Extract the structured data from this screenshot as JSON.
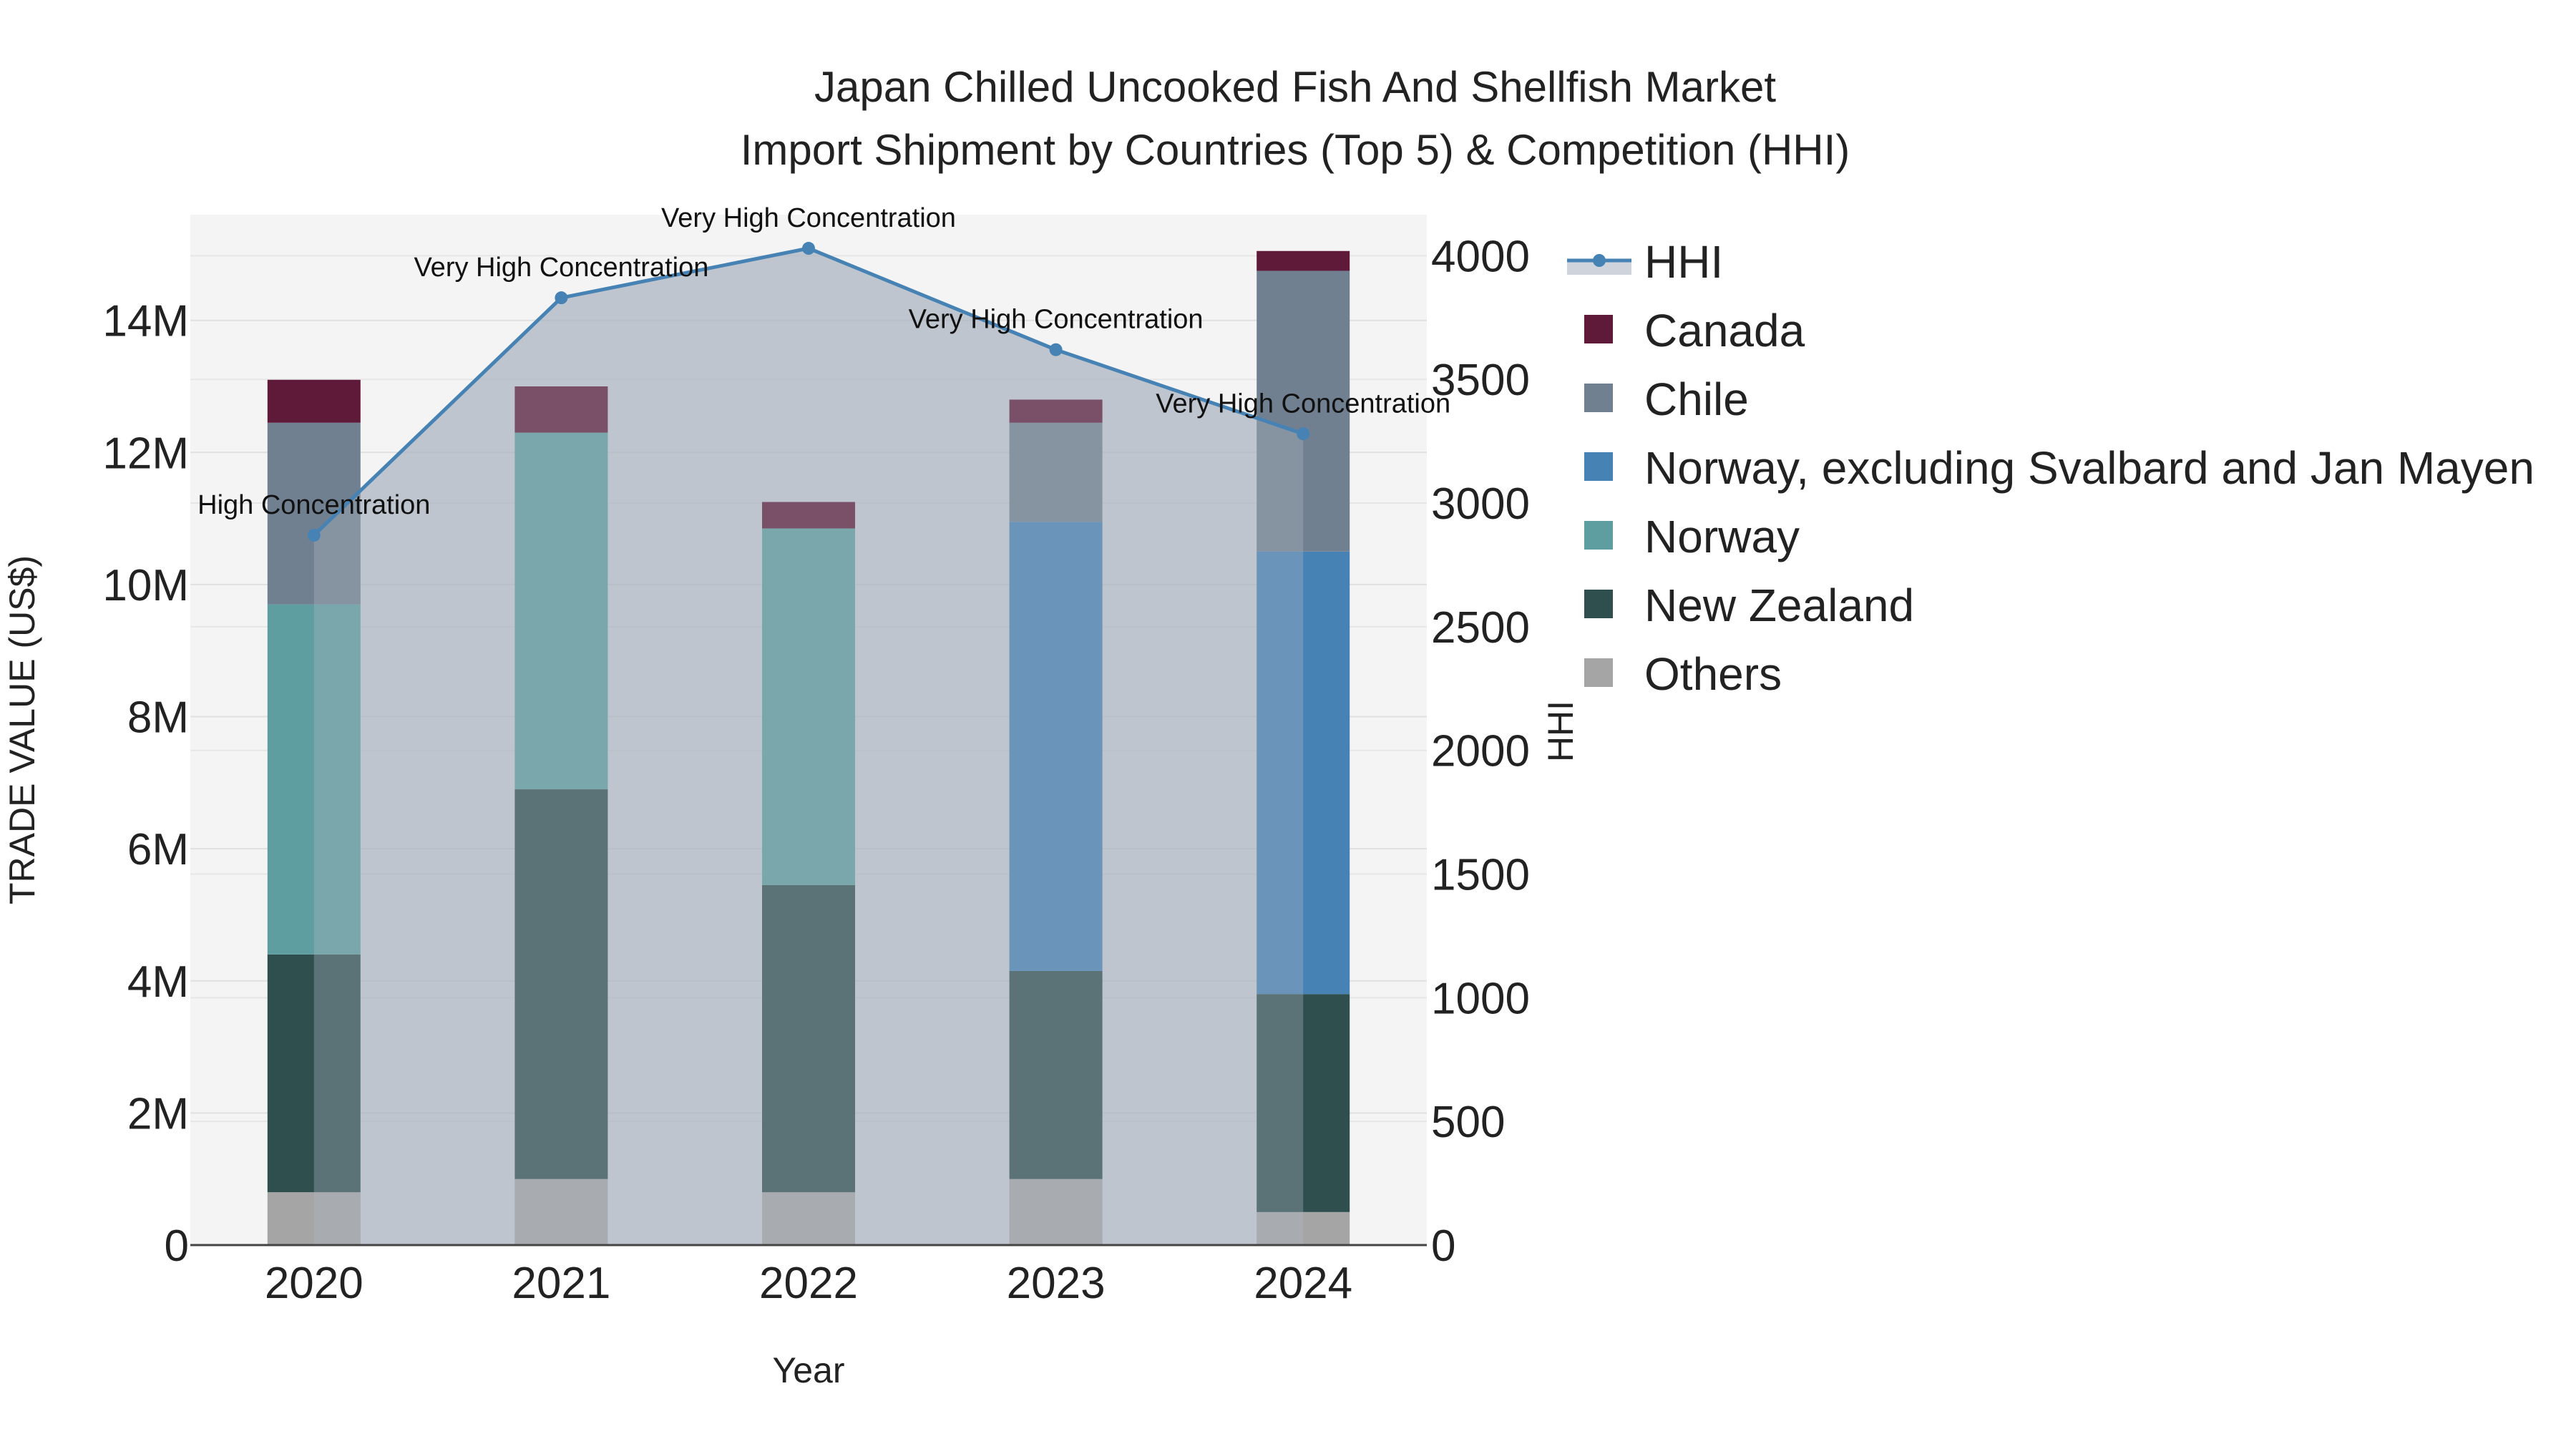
{
  "chart_data": {
    "type": "bar",
    "title_line1": "Japan Chilled Uncooked Fish And Shellfish Market",
    "title_line2": "Import Shipment by Countries (Top 5) & Competition (HHI)",
    "xlabel": "Year",
    "ylabel": "TRADE VALUE (US$)",
    "y2label": "HHI",
    "categories": [
      "2020",
      "2021",
      "2022",
      "2023",
      "2024"
    ],
    "ylim": [
      0,
      15600000
    ],
    "y2lim": [
      0,
      4166
    ],
    "yticks": [
      {
        "value": 0,
        "label": "0"
      },
      {
        "value": 2000000,
        "label": "2M"
      },
      {
        "value": 4000000,
        "label": "4M"
      },
      {
        "value": 6000000,
        "label": "6M"
      },
      {
        "value": 8000000,
        "label": "8M"
      },
      {
        "value": 10000000,
        "label": "10M"
      },
      {
        "value": 12000000,
        "label": "12M"
      },
      {
        "value": 14000000,
        "label": "14M"
      }
    ],
    "y2ticks": [
      {
        "value": 0,
        "label": "0"
      },
      {
        "value": 500,
        "label": "500"
      },
      {
        "value": 1000,
        "label": "1000"
      },
      {
        "value": 1500,
        "label": "1500"
      },
      {
        "value": 2000,
        "label": "2000"
      },
      {
        "value": 2500,
        "label": "2500"
      },
      {
        "value": 3000,
        "label": "3000"
      },
      {
        "value": 3500,
        "label": "3500"
      },
      {
        "value": 4000,
        "label": "4000"
      }
    ],
    "series": [
      {
        "name": "Others",
        "color": "#a5a5a5",
        "values": [
          800000,
          1000000,
          800000,
          1000000,
          500000
        ]
      },
      {
        "name": "New Zealand",
        "color": "#2f4f4f",
        "values": [
          3600000,
          5900000,
          4650000,
          3150000,
          3300000
        ]
      },
      {
        "name": "Norway",
        "color": "#5f9ea0",
        "values": [
          5300000,
          5400000,
          5400000,
          0,
          0
        ]
      },
      {
        "name": "Norway, excluding Svalbard and Jan Mayen",
        "color": "#4682b4",
        "values": [
          0,
          0,
          0,
          6800000,
          6700000
        ]
      },
      {
        "name": "Chile",
        "color": "#708090",
        "values": [
          2750000,
          0,
          0,
          1500000,
          4250000
        ]
      },
      {
        "name": "Canada",
        "color": "#5f1a3a",
        "values": [
          650000,
          700000,
          400000,
          350000,
          300000
        ]
      }
    ],
    "hhi": {
      "name": "HHI",
      "color": "#4682b4",
      "values": [
        2870,
        3830,
        4030,
        3620,
        3280
      ],
      "labels": [
        "High Concentration",
        "Very High Concentration",
        "Very High Concentration",
        "Very High Concentration",
        "Very High Concentration"
      ]
    },
    "legend": [
      "HHI",
      "Canada",
      "Chile",
      "Norway, excluding Svalbard and Jan Mayen",
      "Norway",
      "New Zealand",
      "Others"
    ],
    "legend_position": "right"
  }
}
